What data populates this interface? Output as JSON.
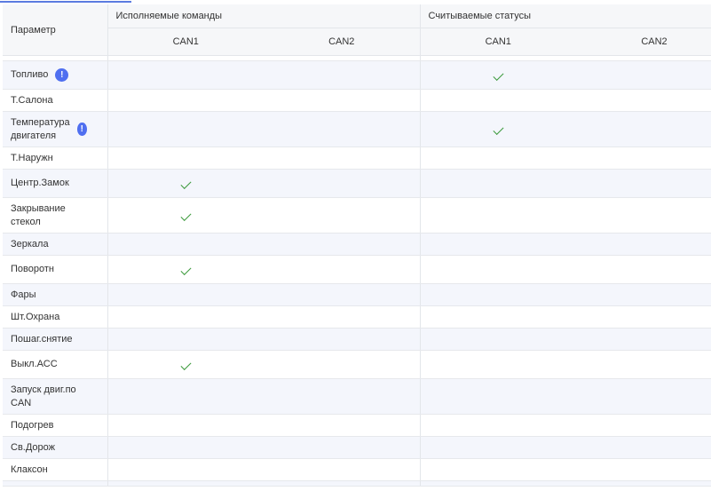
{
  "header": {
    "param": "Параметр",
    "groups": [
      "Исполняемые команды",
      "Считываемые статусы"
    ],
    "subs": [
      "CAN1",
      "CAN2",
      "CAN1",
      "CAN2"
    ]
  },
  "colors": {
    "accent": "#4f6ff0",
    "check": "#3c9a3c",
    "row_alt": "#f4f6fc"
  },
  "rows": [
    {
      "label": "Топливо",
      "info": true,
      "checks": [
        false,
        false,
        true,
        false
      ]
    },
    {
      "label": "Т.Салона",
      "checks": [
        false,
        false,
        false,
        false
      ]
    },
    {
      "label": "Температура двигателя",
      "info": true,
      "checks": [
        false,
        false,
        true,
        false
      ]
    },
    {
      "label": "Т.Наружн",
      "checks": [
        false,
        false,
        false,
        false
      ]
    },
    {
      "label": "Центр.Замок",
      "checks": [
        true,
        false,
        false,
        false
      ]
    },
    {
      "label": "Закрывание стекол",
      "checks": [
        true,
        false,
        false,
        false
      ]
    },
    {
      "label": "Зеркала",
      "checks": [
        false,
        false,
        false,
        false
      ]
    },
    {
      "label": "Поворотн",
      "checks": [
        true,
        false,
        false,
        false
      ]
    },
    {
      "label": "Фары",
      "checks": [
        false,
        false,
        false,
        false
      ]
    },
    {
      "label": "Шт.Охрана",
      "checks": [
        false,
        false,
        false,
        false
      ]
    },
    {
      "label": "Пошаг.снятие",
      "checks": [
        false,
        false,
        false,
        false
      ]
    },
    {
      "label": "Выкл.АСС",
      "checks": [
        true,
        false,
        false,
        false
      ]
    },
    {
      "label": "Запуск двиг.по CAN",
      "checks": [
        false,
        false,
        false,
        false
      ]
    },
    {
      "label": "Подогрев",
      "checks": [
        false,
        false,
        false,
        false
      ]
    },
    {
      "label": "Св.Дорож",
      "checks": [
        false,
        false,
        false,
        false
      ]
    },
    {
      "label": "Клаксон",
      "checks": [
        false,
        false,
        false,
        false
      ]
    }
  ]
}
